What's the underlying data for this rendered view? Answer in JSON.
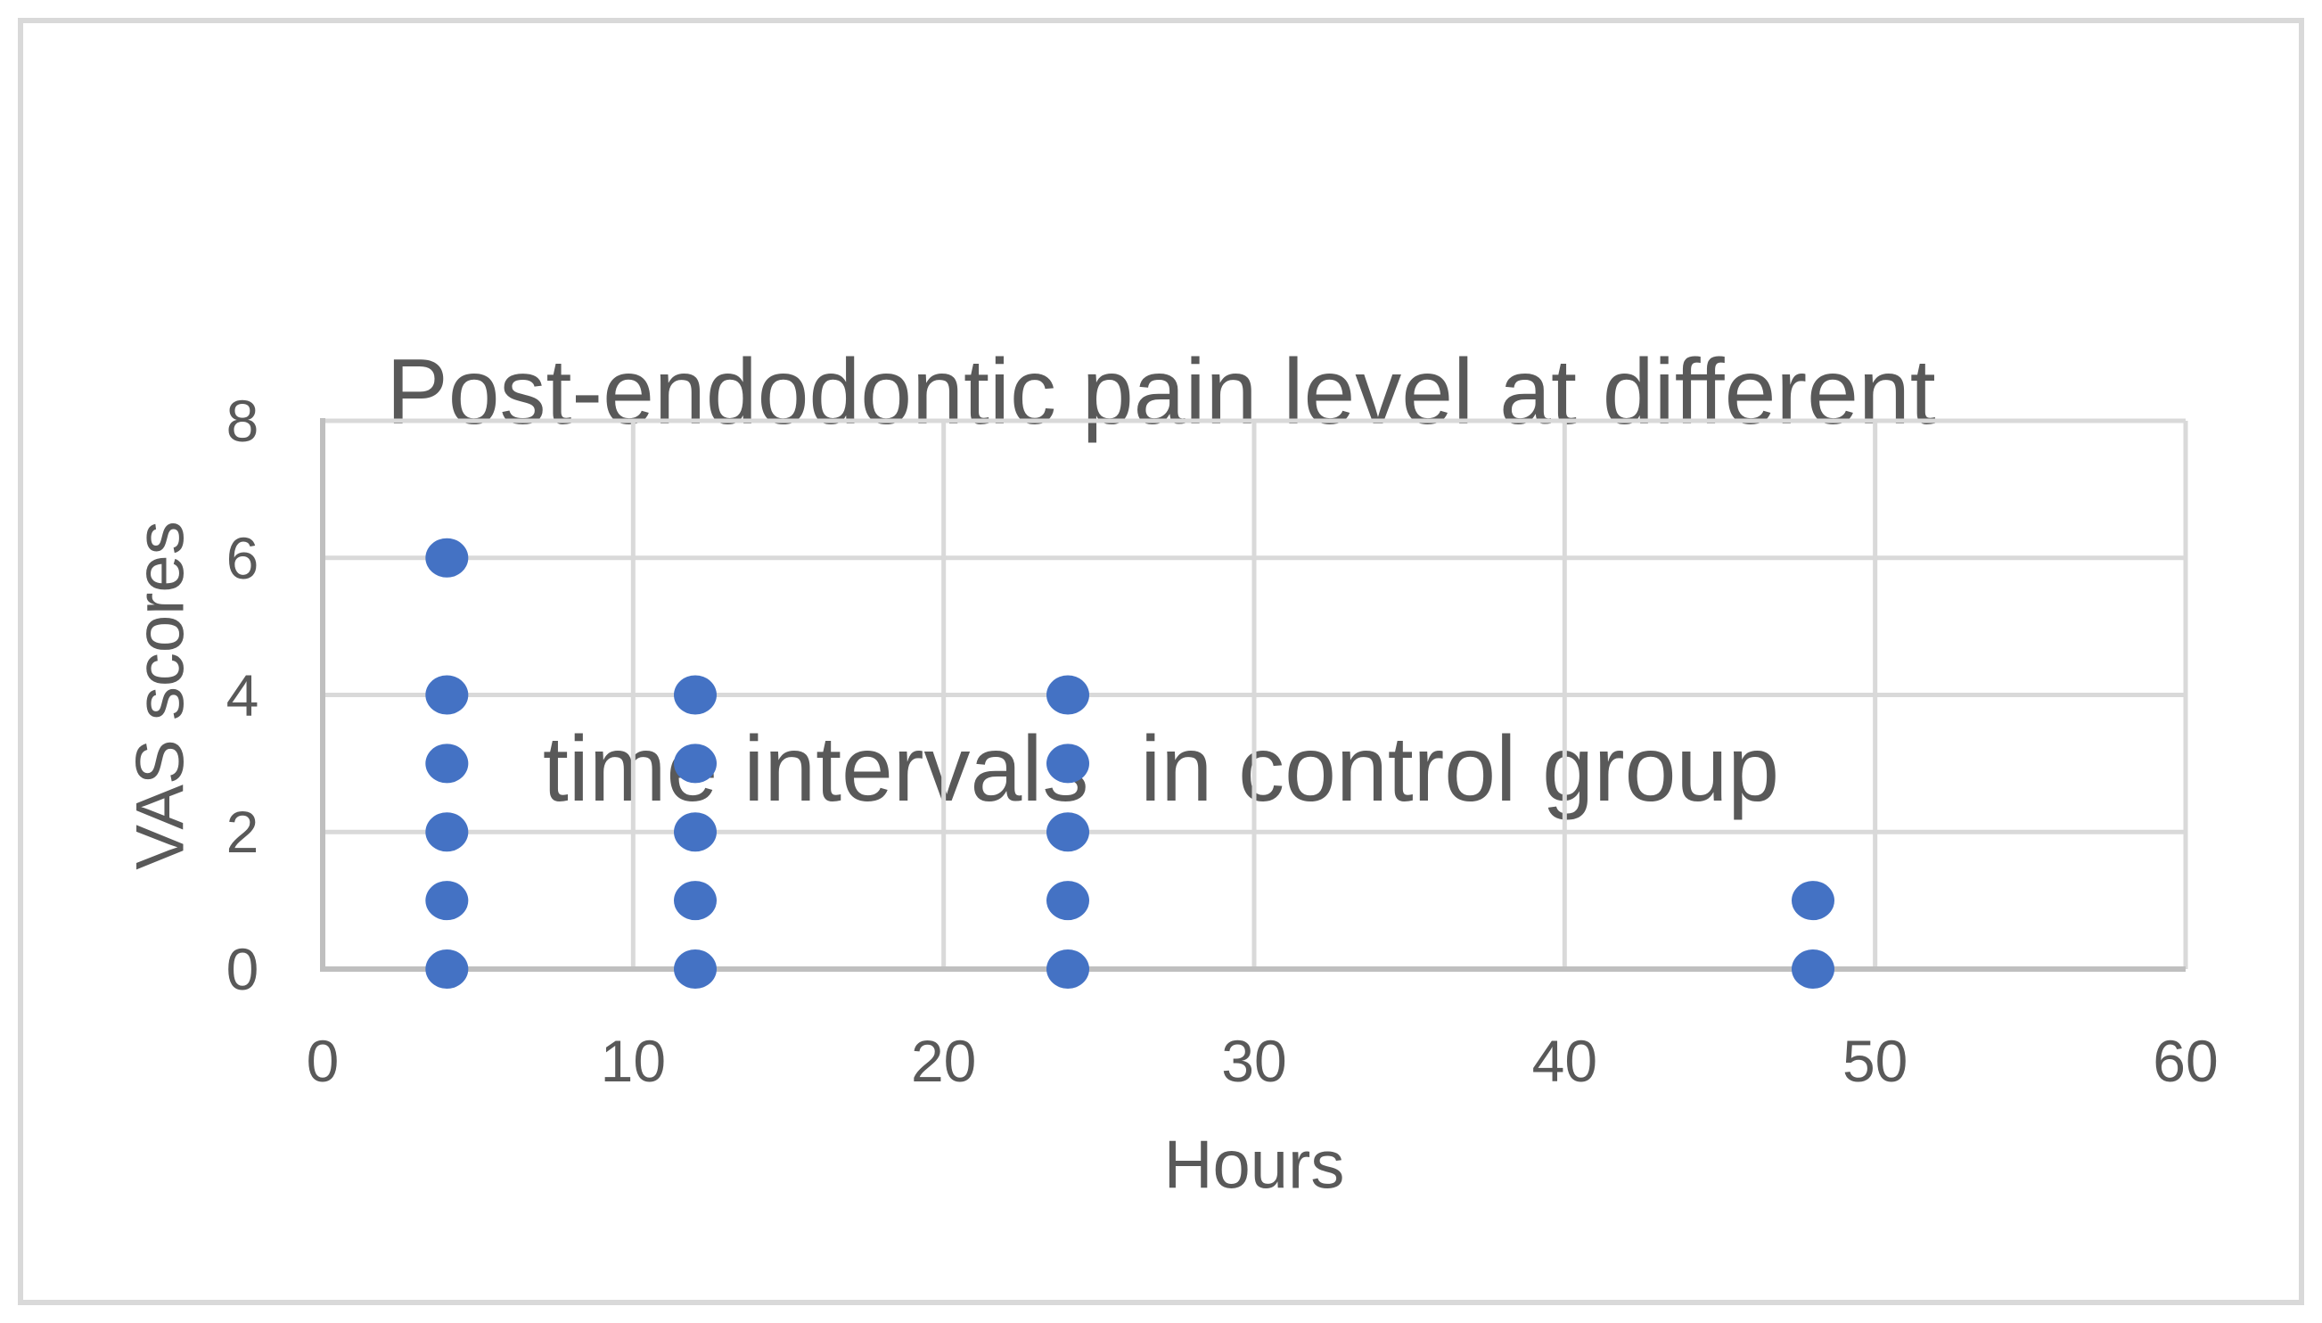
{
  "figure": {
    "background": "#ffffff",
    "border_color": "#d9d9d9"
  },
  "chart_data": {
    "type": "scatter",
    "title": "Post-endodontic pain level at different time intervals  in control group",
    "title_lines": [
      "Post-endodontic pain level at different",
      "time intervals  in control group"
    ],
    "xlabel": "Hours",
    "ylabel": "VAS scores",
    "xlim": [
      0,
      60
    ],
    "ylim": [
      0,
      8
    ],
    "xticks": [
      0,
      10,
      20,
      30,
      40,
      50,
      60
    ],
    "yticks": [
      0,
      2,
      4,
      6,
      8
    ],
    "grid": true,
    "legend_position": "none",
    "colors": {
      "marker": "#4472c4",
      "title": "#595959",
      "tick_label": "#595959",
      "gridline": "#d9d9d9",
      "axis_line": "#bfbfbf"
    },
    "series": [
      {
        "name": "VAS scores",
        "marker_color": "#4472c4",
        "points": [
          {
            "x": 4,
            "y": 0
          },
          {
            "x": 4,
            "y": 1
          },
          {
            "x": 4,
            "y": 2
          },
          {
            "x": 4,
            "y": 3
          },
          {
            "x": 4,
            "y": 4
          },
          {
            "x": 4,
            "y": 6
          },
          {
            "x": 12,
            "y": 0
          },
          {
            "x": 12,
            "y": 1
          },
          {
            "x": 12,
            "y": 2
          },
          {
            "x": 12,
            "y": 3
          },
          {
            "x": 12,
            "y": 4
          },
          {
            "x": 24,
            "y": 0
          },
          {
            "x": 24,
            "y": 1
          },
          {
            "x": 24,
            "y": 2
          },
          {
            "x": 24,
            "y": 3
          },
          {
            "x": 24,
            "y": 4
          },
          {
            "x": 48,
            "y": 0
          },
          {
            "x": 48,
            "y": 1
          }
        ]
      }
    ]
  }
}
